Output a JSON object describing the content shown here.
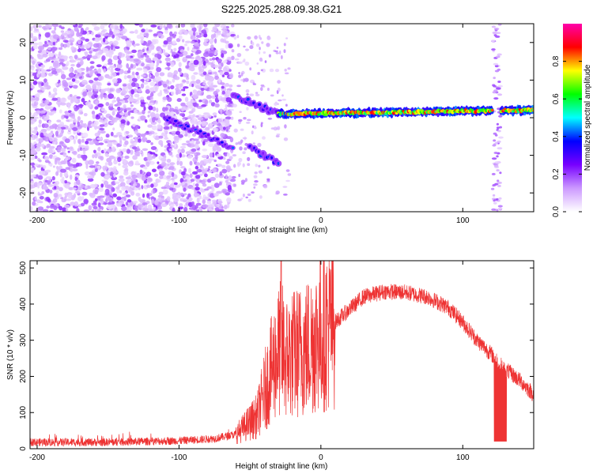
{
  "title": "S225.2025.288.09.38.G21",
  "chart_data": [
    {
      "type": "heatmap",
      "xlabel": "Height of straight line (km)",
      "ylabel": "Frequency (Hz)",
      "xlim": [
        -205,
        150
      ],
      "ylim": [
        -25,
        25
      ],
      "x_ticks": [
        -200,
        -100,
        0,
        100
      ],
      "x_tick_labels": [
        "-200",
        "-100",
        "0",
        "100"
      ],
      "y_ticks": [
        -20,
        -10,
        0,
        10,
        20
      ],
      "y_tick_labels": [
        "-20",
        "-10",
        "0",
        "10",
        "20"
      ],
      "colorbar": {
        "label": "Normalized spectral amplitude",
        "range": [
          0,
          1
        ],
        "ticks": [
          0,
          0.2,
          0.4,
          0.6,
          0.8
        ],
        "tick_labels": [
          "0.0",
          "0.2",
          "0.4",
          "0.6",
          "0.8"
        ],
        "colors": [
          "#ffffff",
          "#cc99ff",
          "#7700ff",
          "#0000ff",
          "#00ffff",
          "#00ff00",
          "#ffff00",
          "#ff0000",
          "#ff00aa"
        ]
      },
      "features": {
        "noise_region_x": [
          -205,
          -62
        ],
        "descending_tone": {
          "x": [
            -110,
            -62
          ],
          "y": [
            0,
            -8
          ]
        },
        "upper_tone": {
          "x": [
            -62,
            -30
          ],
          "y": [
            6,
            1
          ]
        },
        "lower_tone": {
          "x": [
            -50,
            -30
          ],
          "y": [
            -8,
            -12
          ]
        },
        "carrier": {
          "x": [
            -30,
            150
          ],
          "y": [
            1,
            2
          ]
        },
        "vertical_stripe_x": 124
      }
    },
    {
      "type": "line",
      "xlabel": "Height of straight line (km)",
      "ylabel": "SNR (10 * v/v)",
      "xlim": [
        -205,
        150
      ],
      "ylim": [
        0,
        520
      ],
      "x_ticks": [
        -200,
        -100,
        0,
        100
      ],
      "x_tick_labels": [
        "-200",
        "-100",
        "0",
        "100"
      ],
      "y_ticks": [
        0,
        100,
        200,
        300,
        400,
        500
      ],
      "y_tick_labels": [
        "0",
        "100",
        "200",
        "300",
        "400",
        "500"
      ],
      "color": "#ee3333",
      "envelope": {
        "x": [
          -205,
          -150,
          -100,
          -75,
          -60,
          -45,
          -38,
          -32,
          -28,
          -25,
          -20,
          -15,
          -10,
          -5,
          0,
          10,
          20,
          30,
          45,
          60,
          75,
          90,
          100,
          110,
          122,
          130,
          140,
          150
        ],
        "y": [
          18,
          18,
          22,
          28,
          40,
          90,
          180,
          250,
          280,
          250,
          260,
          270,
          280,
          300,
          320,
          350,
          385,
          420,
          435,
          432,
          420,
          390,
          350,
          300,
          255,
          220,
          190,
          150
        ]
      },
      "spike": {
        "x": -28,
        "y": 520
      },
      "dropout": {
        "x": [
          122,
          131
        ],
        "y": 20
      }
    }
  ]
}
